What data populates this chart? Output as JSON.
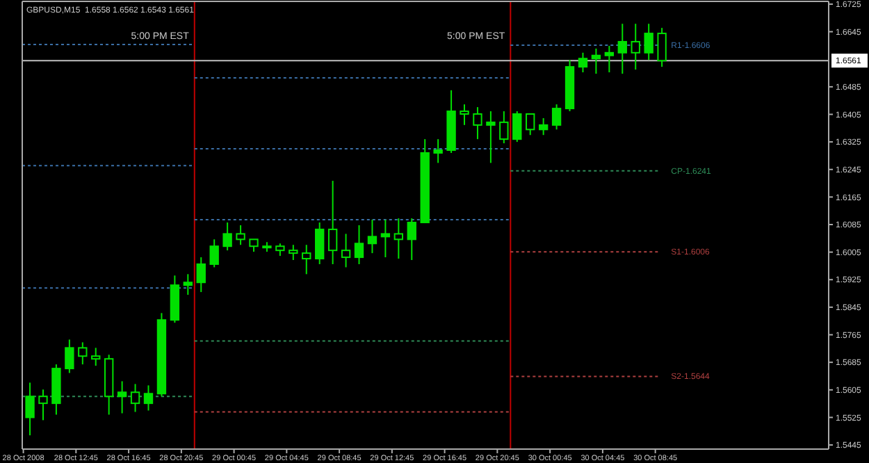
{
  "chart_data": {
    "type": "candlestick",
    "title": "GBPUSD,M15  1.6558 1.6562 1.6543 1.6561",
    "xlim": [
      "2008-10-28T08:40",
      "2008-10-30T21:55"
    ],
    "xticks": [
      {
        "value": "2008-10-28T08:45",
        "label": "28 Oct 2008"
      },
      {
        "value": "2008-10-28T12:45",
        "label": "28 Oct 12:45"
      },
      {
        "value": "2008-10-28T16:45",
        "label": "28 Oct 16:45"
      },
      {
        "value": "2008-10-28T20:45",
        "label": "28 Oct 20:45"
      },
      {
        "value": "2008-10-29T00:45",
        "label": "29 Oct 00:45"
      },
      {
        "value": "2008-10-29T04:45",
        "label": "29 Oct 04:45"
      },
      {
        "value": "2008-10-29T08:45",
        "label": "29 Oct 08:45"
      },
      {
        "value": "2008-10-29T12:45",
        "label": "29 Oct 12:45"
      },
      {
        "value": "2008-10-29T16:45",
        "label": "29 Oct 16:45"
      },
      {
        "value": "2008-10-29T20:45",
        "label": "29 Oct 20:45"
      },
      {
        "value": "2008-10-30T00:45",
        "label": "30 Oct 00:45"
      },
      {
        "value": "2008-10-30T04:45",
        "label": "30 Oct 04:45"
      },
      {
        "value": "2008-10-30T08:45",
        "label": "30 Oct 08:45"
      }
    ],
    "ylim": [
      1.5433,
      1.6733
    ],
    "yticks": [
      1.6725,
      1.6645,
      1.6485,
      1.6405,
      1.6325,
      1.6245,
      1.6165,
      1.6085,
      1.6005,
      1.5925,
      1.5845,
      1.5765,
      1.5685,
      1.5605,
      1.5525,
      1.5445
    ],
    "ref_lines": [
      {
        "axis": "x",
        "value": "2008-10-28T21:45",
        "label": "5:00 PM EST",
        "color": "#c00000"
      },
      {
        "axis": "x",
        "value": "2008-10-29T21:45",
        "label": "5:00 PM EST",
        "color": "#c00000"
      },
      {
        "axis": "y",
        "value": 1.6561,
        "label": "1.6561",
        "color": "#c0c0c0"
      }
    ],
    "color": "#00e000",
    "x": [
      "2008-10-28T09:15",
      "2008-10-28T10:15",
      "2008-10-28T11:15",
      "2008-10-28T12:15",
      "2008-10-28T13:15",
      "2008-10-28T14:15",
      "2008-10-28T15:15",
      "2008-10-28T16:15",
      "2008-10-28T17:15",
      "2008-10-28T18:15",
      "2008-10-28T19:15",
      "2008-10-28T20:15",
      "2008-10-28T21:15",
      "2008-10-28T22:15",
      "2008-10-28T23:15",
      "2008-10-29T00:15",
      "2008-10-29T01:15",
      "2008-10-29T02:15",
      "2008-10-29T03:15",
      "2008-10-29T04:15",
      "2008-10-29T05:15",
      "2008-10-29T06:15",
      "2008-10-29T07:15",
      "2008-10-29T08:15",
      "2008-10-29T09:15",
      "2008-10-29T10:15",
      "2008-10-29T11:15",
      "2008-10-29T12:15",
      "2008-10-29T13:15",
      "2008-10-29T14:15",
      "2008-10-29T15:15",
      "2008-10-29T16:15",
      "2008-10-29T17:15",
      "2008-10-29T18:15",
      "2008-10-29T19:15",
      "2008-10-29T20:15",
      "2008-10-29T21:15",
      "2008-10-29T22:15",
      "2008-10-29T23:15",
      "2008-10-30T00:15",
      "2008-10-30T01:15",
      "2008-10-30T02:15",
      "2008-10-30T03:15",
      "2008-10-30T04:15",
      "2008-10-30T05:15",
      "2008-10-30T06:15",
      "2008-10-30T07:15",
      "2008-10-30T08:15",
      "2008-10-30T09:15"
    ],
    "ohlc": [
      [
        1.5525,
        1.5626,
        1.5473,
        1.5586
      ],
      [
        1.5586,
        1.5606,
        1.5517,
        1.5566
      ],
      [
        1.5566,
        1.5679,
        1.5533,
        1.5667
      ],
      [
        1.5667,
        1.5751,
        1.5654,
        1.5727
      ],
      [
        1.5727,
        1.5743,
        1.5679,
        1.5703
      ],
      [
        1.5703,
        1.5727,
        1.5675,
        1.5695
      ],
      [
        1.5695,
        1.5707,
        1.5533,
        1.5586
      ],
      [
        1.5586,
        1.563,
        1.5537,
        1.5598
      ],
      [
        1.5598,
        1.5622,
        1.5541,
        1.5566
      ],
      [
        1.5566,
        1.5618,
        1.5545,
        1.5594
      ],
      [
        1.5594,
        1.5828,
        1.5586,
        1.5808
      ],
      [
        1.5808,
        1.5937,
        1.58,
        1.5909
      ],
      [
        1.5909,
        1.5941,
        1.5881,
        1.5917
      ],
      [
        1.5917,
        1.599,
        1.5889,
        1.597
      ],
      [
        1.597,
        1.6042,
        1.5961,
        1.6022
      ],
      [
        1.6022,
        1.6091,
        1.601,
        1.6058
      ],
      [
        1.6058,
        1.6083,
        1.6026,
        1.6042
      ],
      [
        1.6042,
        1.6042,
        1.6006,
        1.6022
      ],
      [
        1.6022,
        1.6034,
        1.6006,
        1.6022
      ],
      [
        1.6022,
        1.603,
        1.5994,
        1.601
      ],
      [
        1.601,
        1.6026,
        1.5982,
        1.6002
      ],
      [
        1.6002,
        1.6026,
        1.5941,
        1.5986
      ],
      [
        1.5986,
        1.6091,
        1.597,
        1.6071
      ],
      [
        1.6071,
        1.6212,
        1.597,
        1.601
      ],
      [
        1.601,
        1.6058,
        1.5961,
        1.599
      ],
      [
        1.599,
        1.6083,
        1.597,
        1.603
      ],
      [
        1.603,
        1.6099,
        1.6002,
        1.605
      ],
      [
        1.605,
        1.6099,
        1.599,
        1.6058
      ],
      [
        1.6058,
        1.6103,
        1.5986,
        1.6042
      ],
      [
        1.6042,
        1.6103,
        1.5982,
        1.6091
      ],
      [
        1.6091,
        1.6333,
        1.6091,
        1.6293
      ],
      [
        1.6293,
        1.6333,
        1.6264,
        1.6301
      ],
      [
        1.6301,
        1.6475,
        1.6293,
        1.6414
      ],
      [
        1.6414,
        1.6434,
        1.6374,
        1.6406
      ],
      [
        1.6406,
        1.6426,
        1.6333,
        1.6374
      ],
      [
        1.6374,
        1.6414,
        1.6264,
        1.6382
      ],
      [
        1.6382,
        1.6414,
        1.6321,
        1.6333
      ],
      [
        1.6333,
        1.6414,
        1.6325,
        1.6406
      ],
      [
        1.6406,
        1.6406,
        1.6345,
        1.6361
      ],
      [
        1.6361,
        1.6394,
        1.6345,
        1.6374
      ],
      [
        1.6374,
        1.6434,
        1.6361,
        1.6422
      ],
      [
        1.6422,
        1.6563,
        1.6414,
        1.6543
      ],
      [
        1.6543,
        1.6584,
        1.6527,
        1.6567
      ],
      [
        1.6567,
        1.6596,
        1.6523,
        1.6576
      ],
      [
        1.6576,
        1.6604,
        1.6527,
        1.6584
      ],
      [
        1.6584,
        1.6668,
        1.6523,
        1.6616
      ],
      [
        1.6616,
        1.6668,
        1.6535,
        1.6584
      ],
      [
        1.6584,
        1.6668,
        1.6563,
        1.664
      ],
      [
        1.664,
        1.6656,
        1.6543,
        1.6561
      ]
    ],
    "series": [
      {
        "type": "line",
        "color": "#3a6ea5",
        "line_style": "dotted",
        "marker": "none",
        "x": [
          "2008-10-28T08:40",
          "2008-10-28T21:45"
        ],
        "values": [
          1.6608,
          1.6608
        ]
      },
      {
        "type": "line",
        "color": "#3a6ea5",
        "line_style": "dotted",
        "marker": "none",
        "x": [
          "2008-10-28T08:40",
          "2008-10-28T21:45"
        ],
        "values": [
          1.6256,
          1.6256
        ]
      },
      {
        "type": "line",
        "color": "#3a6ea5",
        "line_style": "dotted",
        "marker": "none",
        "x": [
          "2008-10-28T08:40",
          "2008-10-28T21:45"
        ],
        "values": [
          1.5901,
          1.5901
        ]
      },
      {
        "type": "line",
        "color": "#2e8b57",
        "line_style": "dotted",
        "marker": "none",
        "x": [
          "2008-10-28T08:40",
          "2008-10-28T21:45"
        ],
        "values": [
          1.5586,
          1.5586
        ]
      },
      {
        "type": "line",
        "color": "#3a6ea5",
        "line_style": "dotted",
        "marker": "none",
        "x": [
          "2008-10-28T21:45",
          "2008-10-29T21:45"
        ],
        "values": [
          1.6511,
          1.6511
        ]
      },
      {
        "type": "line",
        "color": "#3a6ea5",
        "line_style": "dotted",
        "marker": "none",
        "x": [
          "2008-10-28T21:45",
          "2008-10-29T21:45"
        ],
        "values": [
          1.6305,
          1.6305
        ]
      },
      {
        "type": "line",
        "color": "#3a6ea5",
        "line_style": "dotted",
        "marker": "none",
        "x": [
          "2008-10-28T21:45",
          "2008-10-29T21:45"
        ],
        "values": [
          1.6099,
          1.6099
        ]
      },
      {
        "type": "line",
        "color": "#2e8b57",
        "line_style": "dotted",
        "marker": "none",
        "x": [
          "2008-10-28T21:45",
          "2008-10-29T21:45"
        ],
        "values": [
          1.5747,
          1.5747
        ]
      },
      {
        "type": "line",
        "color": "#b04040",
        "line_style": "dotted",
        "marker": "none",
        "x": [
          "2008-10-28T21:45",
          "2008-10-29T21:45"
        ],
        "values": [
          1.5541,
          1.5541
        ]
      },
      {
        "type": "line",
        "color": "#3a6ea5",
        "line_style": "dotted",
        "marker": "none",
        "x": [
          "2008-10-29T21:45",
          "2008-10-30T09:00"
        ],
        "values": [
          1.6606,
          1.6606
        ]
      },
      {
        "type": "line",
        "color": "#2e8b57",
        "line_style": "dotted",
        "marker": "none",
        "x": [
          "2008-10-29T21:45",
          "2008-10-30T09:00"
        ],
        "values": [
          1.6241,
          1.6241
        ]
      },
      {
        "type": "line",
        "color": "#b04040",
        "line_style": "dotted",
        "marker": "none",
        "x": [
          "2008-10-29T21:45",
          "2008-10-30T09:00"
        ],
        "values": [
          1.6006,
          1.6006
        ]
      },
      {
        "type": "line",
        "color": "#b04040",
        "line_style": "dotted",
        "marker": "none",
        "x": [
          "2008-10-29T21:45",
          "2008-10-30T09:00"
        ],
        "values": [
          1.5644,
          1.5644
        ]
      }
    ],
    "annotations": [
      {
        "text": "R1-1.6606",
        "x": "2008-10-30T09:00",
        "y": 1.6606
      },
      {
        "text": "CP-1.6241",
        "x": "2008-10-30T09:00",
        "y": 1.6241
      },
      {
        "text": "S1-1.6006",
        "x": "2008-10-30T09:00",
        "y": 1.6006
      },
      {
        "text": "S2-1.5644",
        "x": "2008-10-30T09:00",
        "y": 1.5644
      }
    ]
  }
}
